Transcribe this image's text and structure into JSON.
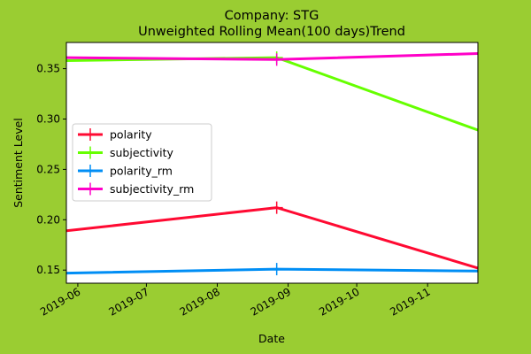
{
  "chart_data": {
    "type": "line",
    "title": "Company: STG",
    "subtitle": "Unweighted Rolling Mean(100 days)Trend",
    "xlabel": "Date",
    "ylabel": "Sentiment Level",
    "x": [
      "2019-05-27",
      "2019-08-27",
      "2019-11-23"
    ],
    "xlim": [
      "2019-05-27",
      "2019-11-23"
    ],
    "ylim": [
      0.137,
      0.376
    ],
    "x_ticks": [
      "2019-06",
      "2019-07",
      "2019-08",
      "2019-09",
      "2019-10",
      "2019-11"
    ],
    "y_ticks": [
      "0.15",
      "0.20",
      "0.25",
      "0.30",
      "0.35"
    ],
    "grid": false,
    "legend_position": "center-left",
    "series": [
      {
        "name": "polarity",
        "color": "#ff0a32",
        "values": [
          0.189,
          0.212,
          0.152
        ]
      },
      {
        "name": "subjectivity",
        "color": "#66ff00",
        "values": [
          0.358,
          0.361,
          0.289
        ]
      },
      {
        "name": "polarity_rm",
        "color": "#008ef5",
        "values": [
          0.147,
          0.151,
          0.149
        ]
      },
      {
        "name": "subjectivity_rm",
        "color": "#ff00c8",
        "values": [
          0.361,
          0.359,
          0.365
        ]
      }
    ]
  }
}
